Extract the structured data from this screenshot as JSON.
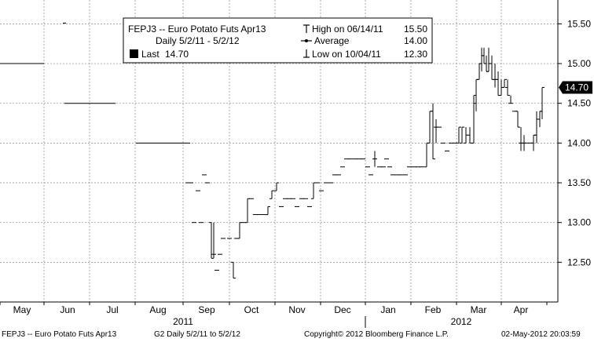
{
  "chart_data": {
    "type": "ohlc",
    "ticker": "FEPJ3",
    "title": "FEPJ3 -- Euro Potato Futs  Apr13",
    "subtitle": "Daily 5/2/11 - 5/2/12",
    "legend": {
      "last_label": "Last",
      "last_value": "14.70",
      "high_label": "High on 06/14/11",
      "high_value": "15.50",
      "average_label": "Average",
      "average_value": "14.00",
      "low_label": "Low on 10/04/11",
      "low_value": "12.30"
    },
    "last_price_tag": "14.70",
    "y_ticks": [
      "12.50",
      "13.00",
      "13.50",
      "14.00",
      "14.50",
      "15.00",
      "15.50"
    ],
    "y_tick_values": [
      12.5,
      13.0,
      13.5,
      14.0,
      14.5,
      15.0,
      15.5
    ],
    "ylim": [
      12.0,
      15.8
    ],
    "x_months": [
      "May",
      "Jun",
      "Jul",
      "Aug",
      "Sep",
      "Oct",
      "Nov",
      "Dec",
      "Jan",
      "Feb",
      "Mar",
      "Apr"
    ],
    "x_years": [
      "2011",
      "2012"
    ],
    "grid": true,
    "axis_side": "right",
    "series": [
      {
        "style": "flat_segments",
        "segments": [
          {
            "from": "May",
            "to": "Jun",
            "value": 15.0
          },
          {
            "from": "Jun",
            "to": "Jul",
            "value": 14.5
          },
          {
            "from": "Aug",
            "to": "Sep",
            "value": 14.0
          }
        ]
      },
      {
        "style": "ohlc_bars",
        "months": [
          "Sep",
          "Oct",
          "Nov",
          "Dec",
          "Jan",
          "Feb",
          "Mar",
          "Apr"
        ],
        "monthly_approx": [
          {
            "month": "Sep",
            "high": 13.6,
            "low": 12.4
          },
          {
            "month": "Oct",
            "high": 13.3,
            "low": 12.3
          },
          {
            "month": "Nov",
            "high": 13.5,
            "low": 13.2
          },
          {
            "month": "Dec",
            "high": 13.8,
            "low": 13.5
          },
          {
            "month": "Jan",
            "high": 13.9,
            "low": 13.6
          },
          {
            "month": "Feb",
            "high": 14.5,
            "low": 13.7
          },
          {
            "month": "Mar",
            "high": 15.2,
            "low": 14.0
          },
          {
            "month": "Apr",
            "high": 14.7,
            "low": 13.9
          }
        ]
      }
    ]
  },
  "footer": {
    "left": "FEPJ3 -- Euro Potato Futs  Apr13",
    "middle": "G2  Daily  5/2/11 to 5/2/12",
    "copyright": "Copyright© 2012 Bloomberg Finance L.P.",
    "timestamp": "02-May-2012 20:03:59"
  }
}
